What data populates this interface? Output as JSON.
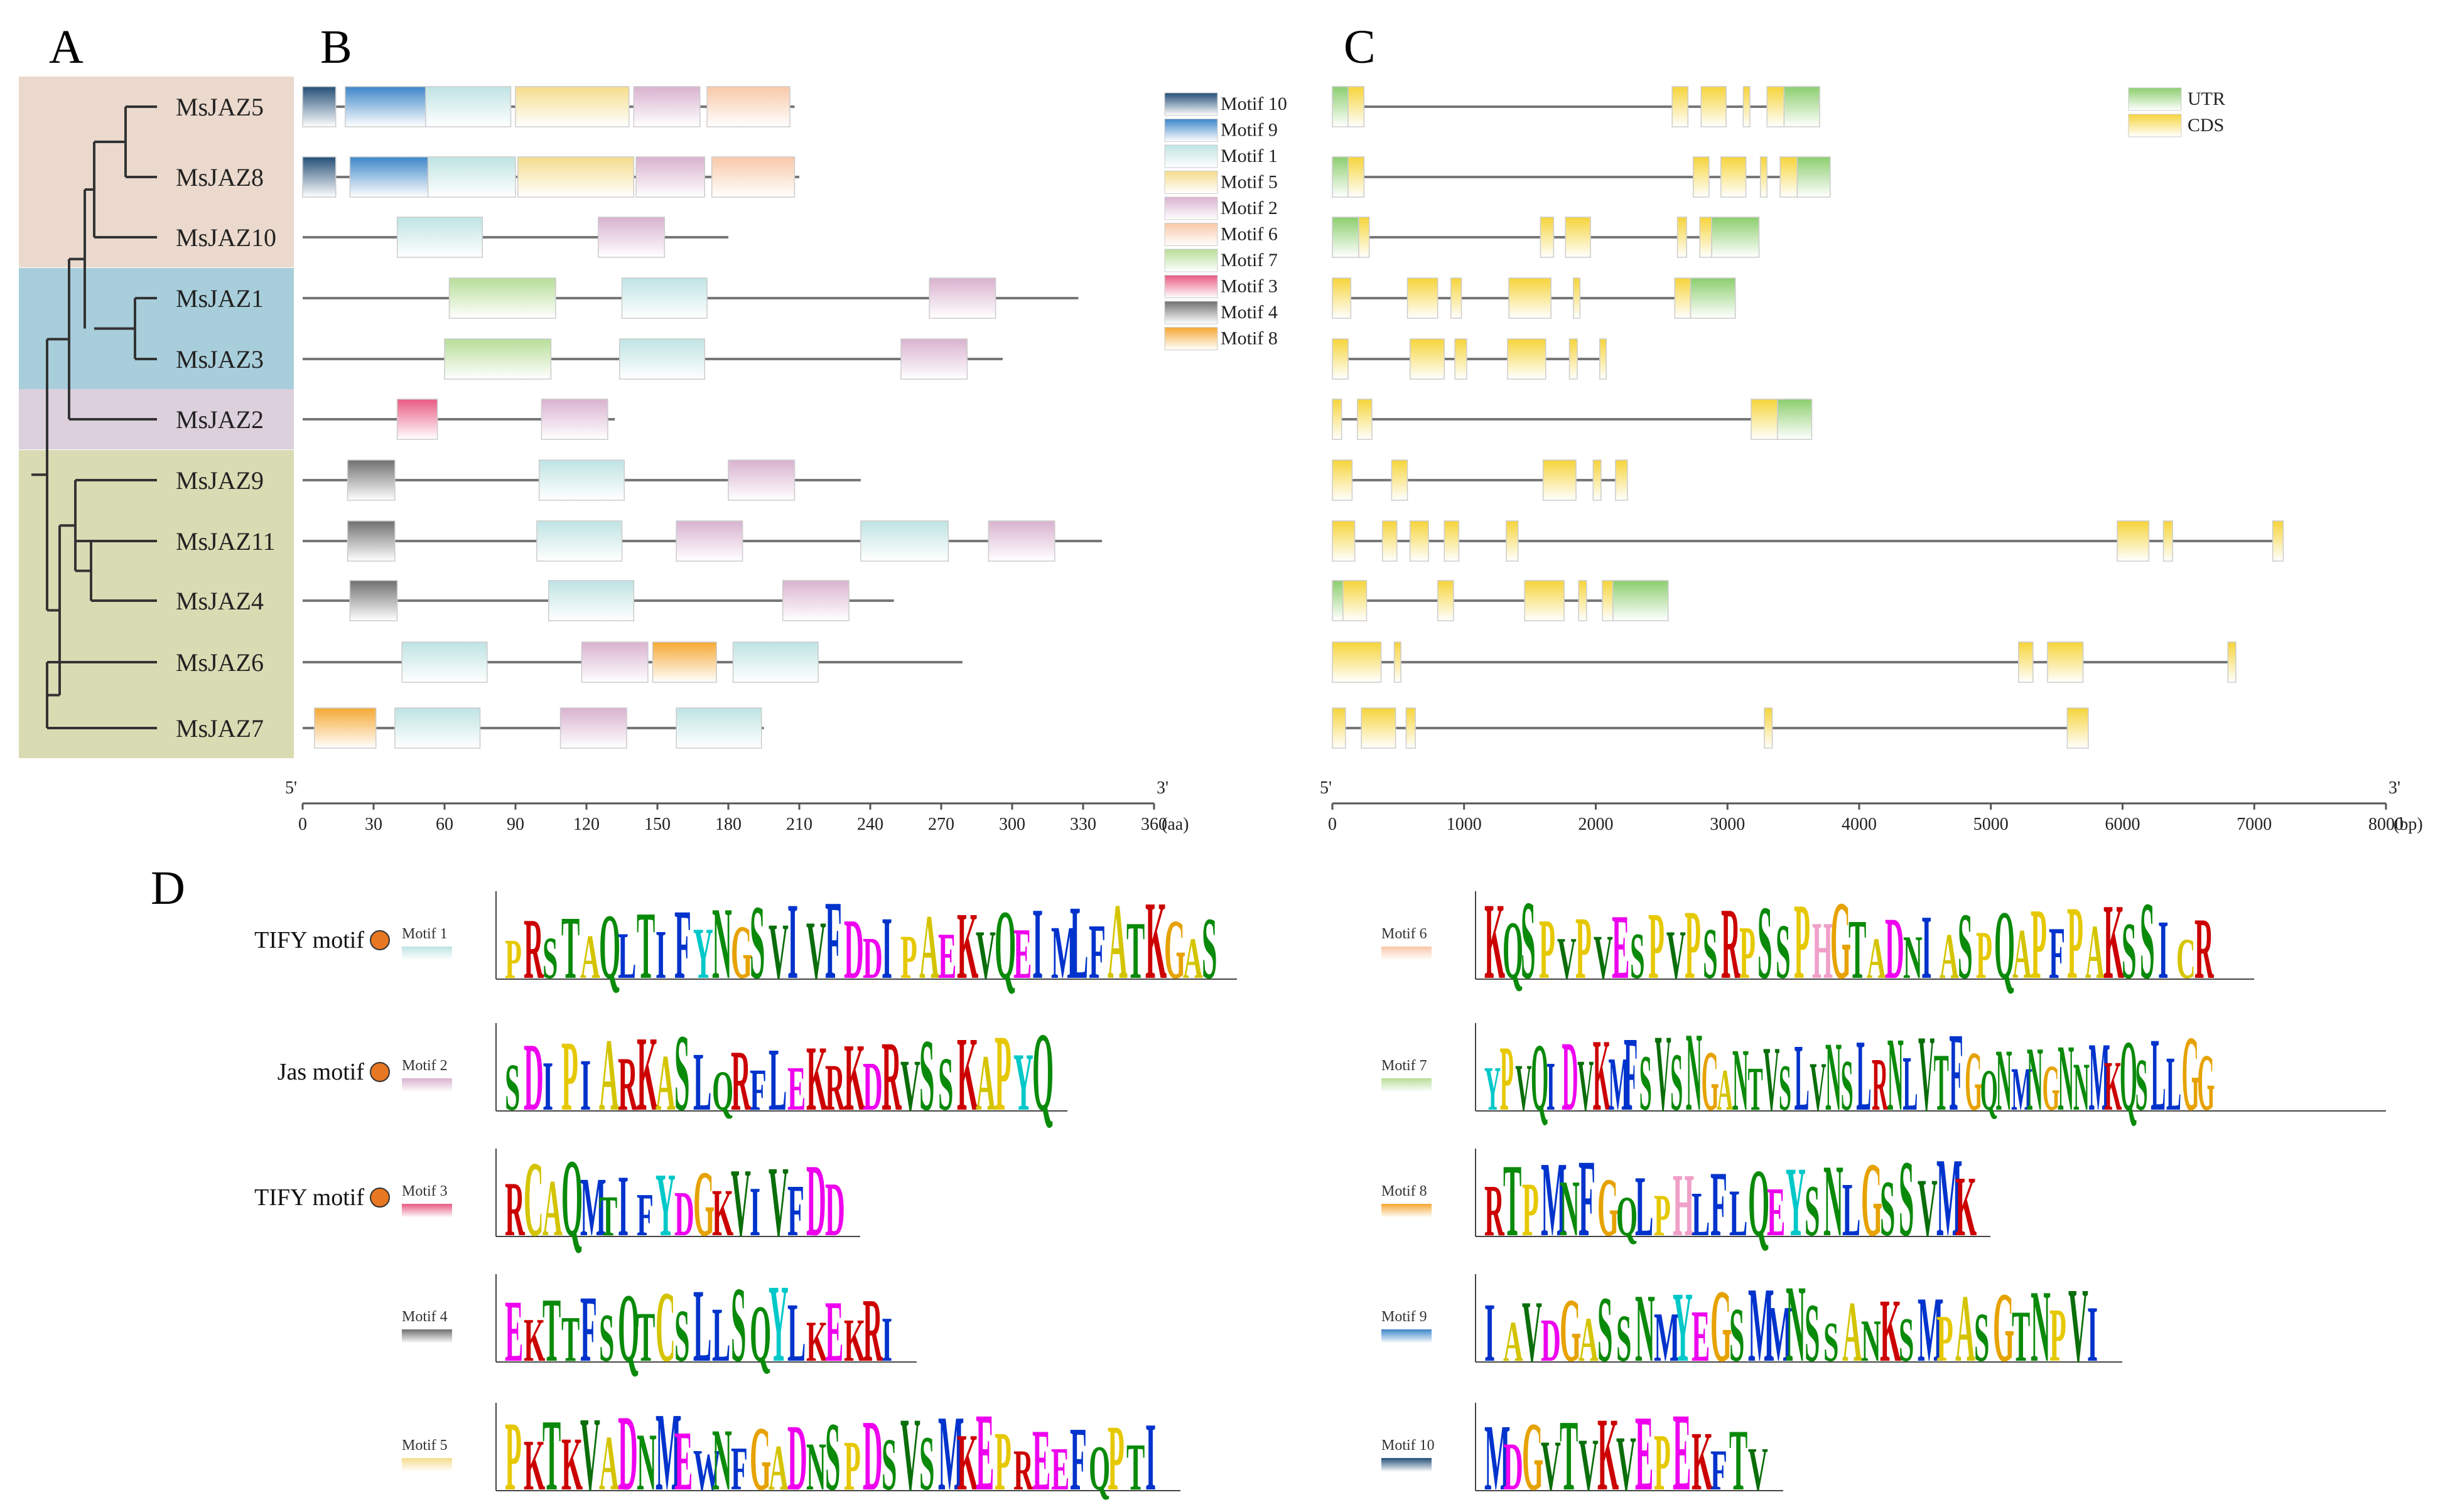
{
  "panels": {
    "a": "A",
    "b": "B",
    "c": "C",
    "d": "D"
  },
  "colors": {
    "clade1": "#ead9cc",
    "clade2": "#a8cedb",
    "clade3": "#dcd0dc",
    "clade4": "#d9dcb3",
    "gene_line": "#777777",
    "tree": "#333333"
  },
  "genes": [
    "MsJAZ5",
    "MsJAZ8",
    "MsJAZ10",
    "MsJAZ1",
    "MsJAZ3",
    "MsJAZ2",
    "MsJAZ9",
    "MsJAZ11",
    "MsJAZ4",
    "MsJAZ6",
    "MsJAZ7"
  ],
  "clades": [
    {
      "color": "#ead9cc",
      "first": 0,
      "last": 2
    },
    {
      "color": "#a8cedb",
      "first": 3,
      "last": 4
    },
    {
      "color": "#dcd0dc",
      "first": 5,
      "last": 5
    },
    {
      "color": "#d9dcb3",
      "first": 6,
      "last": 10
    }
  ],
  "motif_colors": {
    "Motif 10": "#244f77",
    "Motif 9": "#3d86c9",
    "Motif 1": "#bfe3e3",
    "Motif 5": "#f5dc8c",
    "Motif 2": "#d9b2cf",
    "Motif 6": "#f8c8a8",
    "Motif 7": "#b7dd98",
    "Motif 3": "#e85a82",
    "Motif 4": "#707070",
    "Motif 8": "#f5a833"
  },
  "motif_legend": [
    "Motif 10",
    "Motif 9",
    "Motif 1",
    "Motif 5",
    "Motif 2",
    "Motif 6",
    "Motif 7",
    "Motif 3",
    "Motif 4",
    "Motif 8"
  ],
  "protein_axis": {
    "prime5": "5'",
    "prime3": "3'",
    "unit": "(aa)",
    "ticks": [
      0,
      30,
      60,
      90,
      120,
      150,
      180,
      210,
      240,
      270,
      300,
      330,
      360
    ],
    "max": 360
  },
  "proteins": [
    {
      "gene": "MsJAZ5",
      "length": 208,
      "motifs": [
        [
          "Motif 10",
          0,
          14
        ],
        [
          "Motif 9",
          18,
          52
        ],
        [
          "Motif 1",
          52,
          88
        ],
        [
          "Motif 5",
          90,
          138
        ],
        [
          "Motif 2",
          140,
          168
        ],
        [
          "Motif 6",
          171,
          206
        ]
      ]
    },
    {
      "gene": "MsJAZ8",
      "length": 210,
      "motifs": [
        [
          "Motif 10",
          0,
          14
        ],
        [
          "Motif 9",
          20,
          53
        ],
        [
          "Motif 1",
          53,
          90
        ],
        [
          "Motif 5",
          91,
          140
        ],
        [
          "Motif 2",
          141,
          170
        ],
        [
          "Motif 6",
          173,
          208
        ]
      ]
    },
    {
      "gene": "MsJAZ10",
      "length": 180,
      "motifs": [
        [
          "Motif 1",
          40,
          76
        ],
        [
          "Motif 2",
          125,
          153
        ]
      ]
    },
    {
      "gene": "MsJAZ1",
      "length": 328,
      "motifs": [
        [
          "Motif 7",
          62,
          107
        ],
        [
          "Motif 1",
          135,
          171
        ],
        [
          "Motif 2",
          265,
          293
        ]
      ]
    },
    {
      "gene": "MsJAZ3",
      "length": 296,
      "motifs": [
        [
          "Motif 7",
          60,
          105
        ],
        [
          "Motif 1",
          134,
          170
        ],
        [
          "Motif 2",
          253,
          281
        ]
      ]
    },
    {
      "gene": "MsJAZ2",
      "length": 132,
      "motifs": [
        [
          "Motif 3",
          40,
          57
        ],
        [
          "Motif 2",
          101,
          129
        ]
      ]
    },
    {
      "gene": "MsJAZ9",
      "length": 236,
      "motifs": [
        [
          "Motif 4",
          19,
          39
        ],
        [
          "Motif 1",
          100,
          136
        ],
        [
          "Motif 2",
          180,
          208
        ]
      ]
    },
    {
      "gene": "MsJAZ11",
      "length": 338,
      "motifs": [
        [
          "Motif 4",
          19,
          39
        ],
        [
          "Motif 1",
          99,
          135
        ],
        [
          "Motif 2",
          158,
          186
        ],
        [
          "Motif 1",
          236,
          273
        ],
        [
          "Motif 2",
          290,
          318
        ]
      ]
    },
    {
      "gene": "MsJAZ4",
      "length": 250,
      "motifs": [
        [
          "Motif 4",
          20,
          40
        ],
        [
          "Motif 1",
          104,
          140
        ],
        [
          "Motif 2",
          203,
          231
        ]
      ]
    },
    {
      "gene": "MsJAZ6",
      "length": 279,
      "motifs": [
        [
          "Motif 1",
          42,
          78
        ],
        [
          "Motif 2",
          118,
          146
        ],
        [
          "Motif 8",
          148,
          175
        ],
        [
          "Motif 1",
          182,
          218
        ]
      ]
    },
    {
      "gene": "MsJAZ7",
      "length": 195,
      "motifs": [
        [
          "Motif 8",
          5,
          31
        ],
        [
          "Motif 1",
          39,
          75
        ],
        [
          "Motif 2",
          109,
          137
        ],
        [
          "Motif 1",
          158,
          194
        ]
      ]
    }
  ],
  "gene_axis": {
    "prime5": "5'",
    "prime3": "3'",
    "unit": "(bp)",
    "ticks": [
      0,
      1000,
      2000,
      3000,
      4000,
      5000,
      6000,
      7000,
      8000
    ],
    "max": 8000
  },
  "gene_legend": [
    {
      "label": "UTR",
      "color": "#8cce6e"
    },
    {
      "label": "CDS",
      "color": "#f6d43a"
    }
  ],
  "structures": [
    {
      "gene": "MsJAZ5",
      "length": 3700,
      "features": [
        [
          "UTR",
          0,
          120
        ],
        [
          "CDS",
          120,
          240
        ],
        [
          "CDS",
          2580,
          2700
        ],
        [
          "CDS",
          2800,
          2990
        ],
        [
          "CDS",
          3120,
          3170
        ],
        [
          "CDS",
          3300,
          3430
        ],
        [
          "UTR",
          3430,
          3700
        ]
      ]
    },
    {
      "gene": "MsJAZ8",
      "length": 3780,
      "features": [
        [
          "UTR",
          0,
          120
        ],
        [
          "CDS",
          120,
          240
        ],
        [
          "CDS",
          2740,
          2860
        ],
        [
          "CDS",
          2950,
          3140
        ],
        [
          "CDS",
          3250,
          3300
        ],
        [
          "CDS",
          3400,
          3530
        ],
        [
          "UTR",
          3530,
          3780
        ]
      ]
    },
    {
      "gene": "MsJAZ10",
      "length": 3240,
      "features": [
        [
          "UTR",
          0,
          200
        ],
        [
          "CDS",
          200,
          280
        ],
        [
          "CDS",
          1580,
          1680
        ],
        [
          "CDS",
          1770,
          1960
        ],
        [
          "CDS",
          2620,
          2690
        ],
        [
          "CDS",
          2790,
          2880
        ],
        [
          "UTR",
          2880,
          3240
        ]
      ]
    },
    {
      "gene": "MsJAZ1",
      "length": 3060,
      "features": [
        [
          "CDS",
          0,
          140
        ],
        [
          "CDS",
          570,
          800
        ],
        [
          "CDS",
          900,
          980
        ],
        [
          "CDS",
          1340,
          1660
        ],
        [
          "CDS",
          1830,
          1880
        ],
        [
          "CDS",
          2600,
          2720
        ],
        [
          "UTR",
          2720,
          3060
        ]
      ]
    },
    {
      "gene": "MsJAZ3",
      "length": 2080,
      "features": [
        [
          "CDS",
          0,
          120
        ],
        [
          "CDS",
          590,
          850
        ],
        [
          "CDS",
          930,
          1020
        ],
        [
          "CDS",
          1330,
          1620
        ],
        [
          "CDS",
          1800,
          1860
        ],
        [
          "CDS",
          2030,
          2080
        ]
      ]
    },
    {
      "gene": "MsJAZ2",
      "length": 3640,
      "features": [
        [
          "CDS",
          0,
          70
        ],
        [
          "CDS",
          190,
          300
        ],
        [
          "CDS",
          3180,
          3380
        ],
        [
          "UTR",
          3380,
          3640
        ]
      ]
    },
    {
      "gene": "MsJAZ9",
      "length": 2240,
      "features": [
        [
          "CDS",
          0,
          150
        ],
        [
          "CDS",
          450,
          570
        ],
        [
          "CDS",
          1600,
          1850
        ],
        [
          "CDS",
          1980,
          2040
        ],
        [
          "CDS",
          2150,
          2240
        ]
      ]
    },
    {
      "gene": "MsJAZ11",
      "length": 7220,
      "features": [
        [
          "CDS",
          0,
          170
        ],
        [
          "CDS",
          380,
          490
        ],
        [
          "CDS",
          590,
          730
        ],
        [
          "CDS",
          850,
          960
        ],
        [
          "CDS",
          1320,
          1410
        ],
        [
          "CDS",
          5960,
          6200
        ],
        [
          "CDS",
          6310,
          6380
        ],
        [
          "CDS",
          7140,
          7220
        ]
      ]
    },
    {
      "gene": "MsJAZ4",
      "length": 2550,
      "features": [
        [
          "UTR",
          0,
          80
        ],
        [
          "CDS",
          80,
          260
        ],
        [
          "CDS",
          800,
          920
        ],
        [
          "CDS",
          1460,
          1760
        ],
        [
          "CDS",
          1870,
          1930
        ],
        [
          "CDS",
          2050,
          2130
        ],
        [
          "UTR",
          2130,
          2550
        ]
      ]
    },
    {
      "gene": "MsJAZ6",
      "length": 6860,
      "features": [
        [
          "CDS",
          0,
          370
        ],
        [
          "CDS",
          470,
          520
        ],
        [
          "CDS",
          5210,
          5320
        ],
        [
          "CDS",
          5430,
          5700
        ],
        [
          "CDS",
          6800,
          6860
        ]
      ]
    },
    {
      "gene": "MsJAZ7",
      "length": 5740,
      "features": [
        [
          "CDS",
          0,
          100
        ],
        [
          "CDS",
          220,
          480
        ],
        [
          "CDS",
          560,
          630
        ],
        [
          "CDS",
          3280,
          3340
        ],
        [
          "CDS",
          5580,
          5740
        ]
      ]
    }
  ],
  "logos": [
    {
      "side": "left",
      "name": "Motif 1",
      "label": "TIFY motif",
      "sequence": "PRSTAQLTIFYNGSVIVFDDIPAEKVQEIMLFATKGAS"
    },
    {
      "side": "left",
      "name": "Motif 2",
      "label": "Jas motif",
      "sequence": "SDIPIARKASLQRFLEKRKDRVSSKAPYQ"
    },
    {
      "side": "left",
      "name": "Motif 3",
      "label": "TIFY motif",
      "sequence": "RCAQMTIFYDGKVIVFDD"
    },
    {
      "side": "left",
      "name": "Motif 4",
      "label": "",
      "sequence": "EKTTFSQTCSLLSQYLKEKRI"
    },
    {
      "side": "left",
      "name": "Motif 5",
      "label": "",
      "sequence": "PKTKVADNMEWNFGADNSPDSVSMKEPREEFQPTI"
    },
    {
      "side": "right",
      "name": "Motif 6",
      "label": "",
      "sequence": "KQSPVPVESPVPSRPSSPHGTADNIASPQAPFPAKSSICR"
    },
    {
      "side": "right",
      "name": "Motif 7",
      "label": "",
      "sequence": "YPVQIDVKMFSVSNGANTVSLVNSLRNLVTFGQNMNGNNMKQSLLGG"
    },
    {
      "side": "right",
      "name": "Motif 8",
      "label": "",
      "sequence": "RTPMNFGQLPHLFLQEYSNLGSSVMK"
    },
    {
      "side": "right",
      "name": "Motif 9",
      "label": "",
      "sequence": "IAVDGASSNMYEGSMMNSSANKSMPASGTNPVI"
    },
    {
      "side": "right",
      "name": "Motif 10",
      "label": "",
      "sequence": "MDGVTVKVEPEKFTV"
    }
  ]
}
